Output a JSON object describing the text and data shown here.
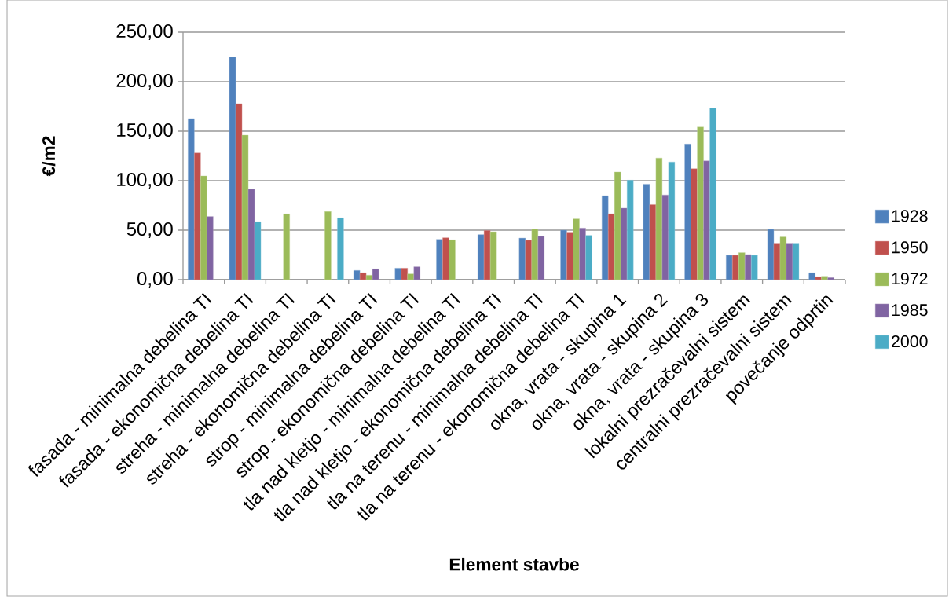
{
  "chart_data": {
    "type": "bar",
    "xlabel": "Element stavbe",
    "ylabel": "€/m2",
    "categories": [
      "fasada - minimalna debelina TI",
      "fasada - ekonomična debelina TI",
      "streha - minimalna debelina TI",
      "streha - ekonomična debelina TI",
      "strop - minimalna debelina TI",
      "strop - ekonomična debelina TI",
      "tla nad kletjo - minimalna debelina TI",
      "tla nad kletjo - ekonomična debelina TI",
      "tla na terenu - minimalna debelina TI",
      "tla na terenu - ekonomična debelina TI",
      "okna, vrata - skupina 1",
      "okna, vrata - skupina 2",
      "okna, vrata - skupina 3",
      "lokalni prezračevalni sistem",
      "centralni prezračevalni sistem",
      "povečanje odprtin"
    ],
    "series": [
      {
        "name": "1928",
        "color": "#4f81bd",
        "values": [
          162.7,
          224.9,
          null,
          null,
          9.3,
          11.6,
          40.7,
          45.5,
          42.0,
          50.0,
          84.8,
          96.5,
          137.0,
          24.6,
          50.9,
          6.9
        ]
      },
      {
        "name": "1950",
        "color": "#c0504d",
        "values": [
          128.0,
          177.8,
          null,
          null,
          6.9,
          11.6,
          42.3,
          49.7,
          39.9,
          47.9,
          66.5,
          75.8,
          112.1,
          24.6,
          36.8,
          2.9
        ]
      },
      {
        "name": "1972",
        "color": "#9bbb59",
        "values": [
          104.8,
          146.0,
          66.4,
          68.8,
          4.5,
          5.8,
          40.2,
          48.4,
          51.1,
          61.4,
          108.8,
          122.9,
          154.2,
          27.3,
          43.2,
          3.4
        ]
      },
      {
        "name": "1985",
        "color": "#8064a2",
        "values": [
          63.8,
          91.5,
          null,
          null,
          10.8,
          13.0,
          null,
          null,
          43.9,
          52.1,
          72.3,
          85.6,
          120.0,
          25.4,
          36.8,
          2.1
        ]
      },
      {
        "name": "2000",
        "color": "#4bacc6",
        "values": [
          null,
          58.5,
          null,
          62.4,
          null,
          null,
          null,
          null,
          null,
          44.7,
          100.5,
          118.9,
          173.3,
          24.6,
          36.8,
          null
        ]
      }
    ],
    "ylim": [
      0,
      250
    ],
    "yticks": [
      {
        "value": 0,
        "label": "0,00"
      },
      {
        "value": 50,
        "label": "50,00"
      },
      {
        "value": 100,
        "label": "100,00"
      },
      {
        "value": 150,
        "label": "150,00"
      },
      {
        "value": 200,
        "label": "200,00"
      },
      {
        "value": 250,
        "label": "250,00"
      }
    ],
    "grid": "y",
    "legend": "right"
  }
}
